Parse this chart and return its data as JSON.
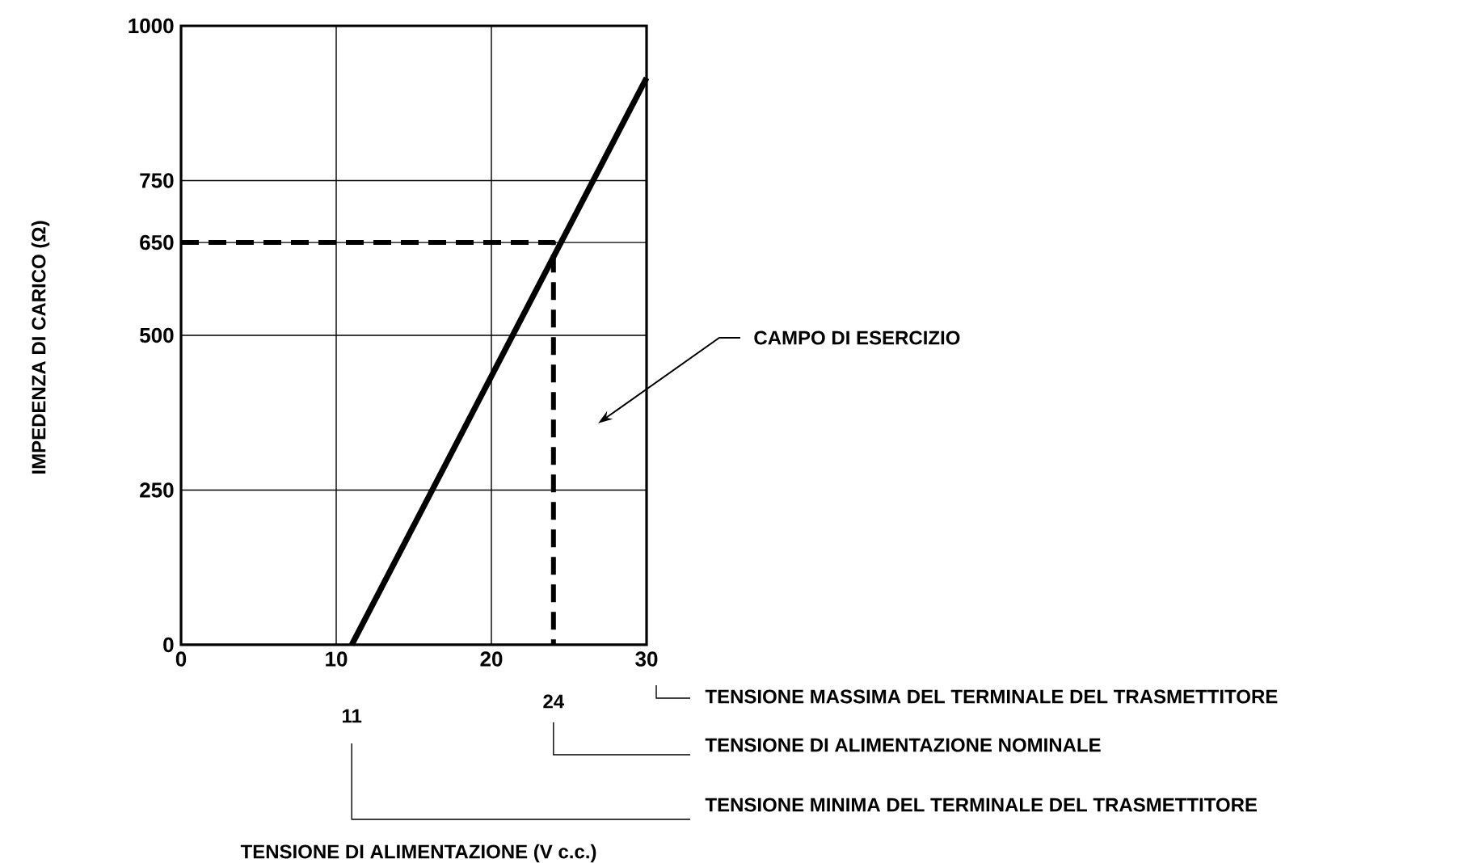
{
  "chart_data": {
    "type": "line",
    "ylabel": "IMPEDENZA DI CARICO (Ω)",
    "xlim": [
      0,
      30
    ],
    "ylim": [
      0,
      1000
    ],
    "xticks": [
      0,
      10,
      20,
      30
    ],
    "yticks": [
      0,
      250,
      500,
      650,
      750,
      1000
    ],
    "grid": true,
    "series": [
      {
        "color": "#000000",
        "line_style": "solid",
        "x": [
          11,
          30
        ],
        "values": [
          0,
          916
        ]
      },
      {
        "color": "#000000",
        "line_style": "dashed",
        "x": [
          0,
          24,
          24
        ],
        "values": [
          650,
          650,
          0
        ]
      }
    ],
    "annotations": [
      "11",
      "24",
      "TENSIONE MASSIMA DEL TERMINALE DEL TRASMETTITORE",
      "TENSIONE DI ALIMENTAZIONE NOMINALE",
      "TENSIONE MINIMA DEL TERMINALE DEL TRASMETTITORE",
      "CAMPO DI ESERCIZIO",
      "TENSIONE DI ALIMENTAZIONE (V c.c.)"
    ]
  }
}
